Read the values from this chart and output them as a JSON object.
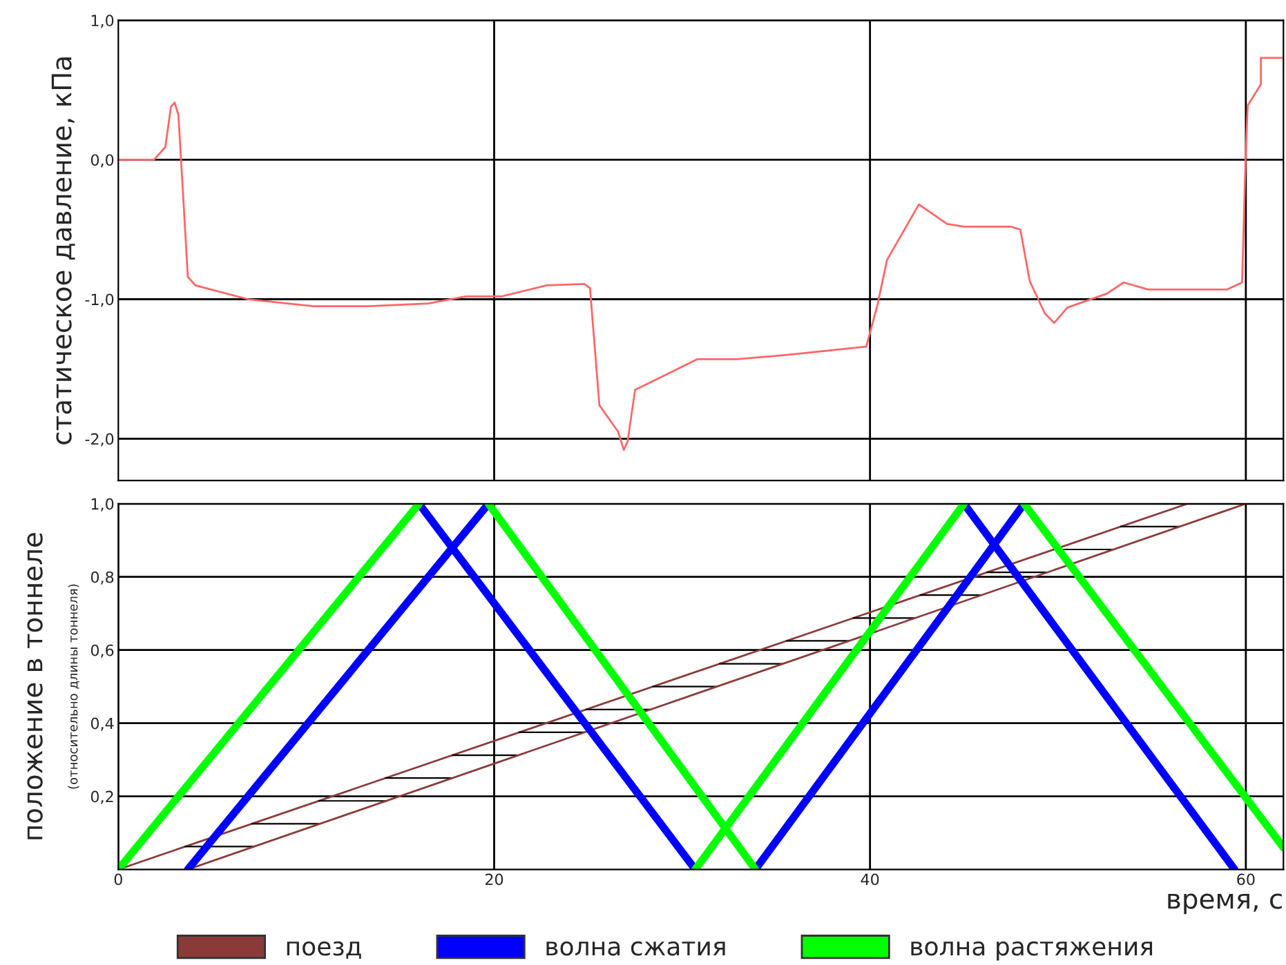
{
  "chart_data": [
    {
      "type": "line",
      "ylabel": "статическое давление, кПа",
      "xlim": [
        0,
        62
      ],
      "xticks": [
        20,
        40,
        60
      ],
      "ylim": [
        -2.3,
        1.0
      ],
      "yticks": [
        {
          "value": 1.0,
          "label": "1,0"
        },
        {
          "value": 0.0,
          "label": "0,0"
        },
        {
          "value": -1.0,
          "label": "-1,0"
        },
        {
          "value": -2.0,
          "label": "-2,0"
        }
      ],
      "grid": true,
      "tick_labels": "y",
      "series": [
        {
          "color": "#ff6666",
          "x": [
            0,
            1.9,
            2.5,
            2.8,
            3.0,
            3.2,
            3.7,
            4.1,
            6.9,
            10.4,
            13.3,
            16.5,
            18.5,
            20.4,
            22.8,
            24.8,
            25.1,
            25.6,
            26.6,
            26.9,
            27.1,
            27.5,
            28.7,
            30.8,
            32.9,
            35.5,
            39.8,
            40.4,
            40.9,
            42.6,
            44.1,
            45.0,
            47.5,
            48.0,
            48.5,
            49.3,
            49.8,
            50.5,
            52.6,
            53.5,
            54.8,
            59.0,
            59.8,
            60.0,
            60.1,
            60.8,
            60.8,
            62.0
          ],
          "values": [
            0,
            0,
            0.09,
            0.38,
            0.41,
            0.32,
            -0.84,
            -0.9,
            -1.0,
            -1.05,
            -1.05,
            -1.03,
            -0.98,
            -0.98,
            -0.9,
            -0.89,
            -0.92,
            -1.76,
            -1.95,
            -2.08,
            -2.02,
            -1.65,
            -1.57,
            -1.43,
            -1.43,
            -1.4,
            -1.34,
            -1.04,
            -0.72,
            -0.32,
            -0.46,
            -0.48,
            -0.48,
            -0.5,
            -0.87,
            -1.1,
            -1.17,
            -1.06,
            -0.96,
            -0.88,
            -0.93,
            -0.93,
            -0.88,
            0.07,
            0.39,
            0.54,
            0.73,
            0.73
          ]
        }
      ]
    },
    {
      "type": "line",
      "xlabel": "время, с",
      "ylabel": "положение в тоннеле",
      "annotations": [
        "(относительно длины тоннеля)"
      ],
      "xlim": [
        0,
        62
      ],
      "xticks": [
        0,
        20,
        40,
        60
      ],
      "ylim": [
        0,
        1.0
      ],
      "yticks": [
        {
          "value": 0.2,
          "label": "0,2"
        },
        {
          "value": 0.4,
          "label": "0,4"
        },
        {
          "value": 0.6,
          "label": "0,6"
        },
        {
          "value": 0.8,
          "label": "0,8"
        },
        {
          "value": 1.0,
          "label": "1,0"
        }
      ],
      "grid": true,
      "legend": "bottom",
      "series": [
        {
          "name": "поезд",
          "color": "#8b3a3a",
          "x": [
            0,
            56.9
          ],
          "values": [
            0,
            1.0
          ]
        },
        {
          "color": "#8b3a3a",
          "x": [
            3.7,
            60
          ],
          "values": [
            0,
            1.0
          ]
        },
        {
          "name": "волна сжатия",
          "color": "#0000ff",
          "x": [
            3.7,
            19.7,
            null,
            16.0,
            30.7,
            null,
            33.9,
            48.2,
            null,
            45.0,
            59.4
          ],
          "values": [
            0,
            1.0,
            null,
            1.0,
            0,
            null,
            0,
            1.0,
            null,
            1.0,
            0
          ]
        },
        {
          "name": "волна растяжения",
          "color": "#00ff00",
          "x": [
            0,
            16.0,
            null,
            19.7,
            33.9,
            null,
            30.7,
            45.0,
            null,
            48.2,
            62.0
          ],
          "values": [
            0,
            1.0,
            null,
            1.0,
            0,
            null,
            0,
            1.0,
            null,
            1.0,
            0.06
          ]
        }
      ]
    }
  ]
}
